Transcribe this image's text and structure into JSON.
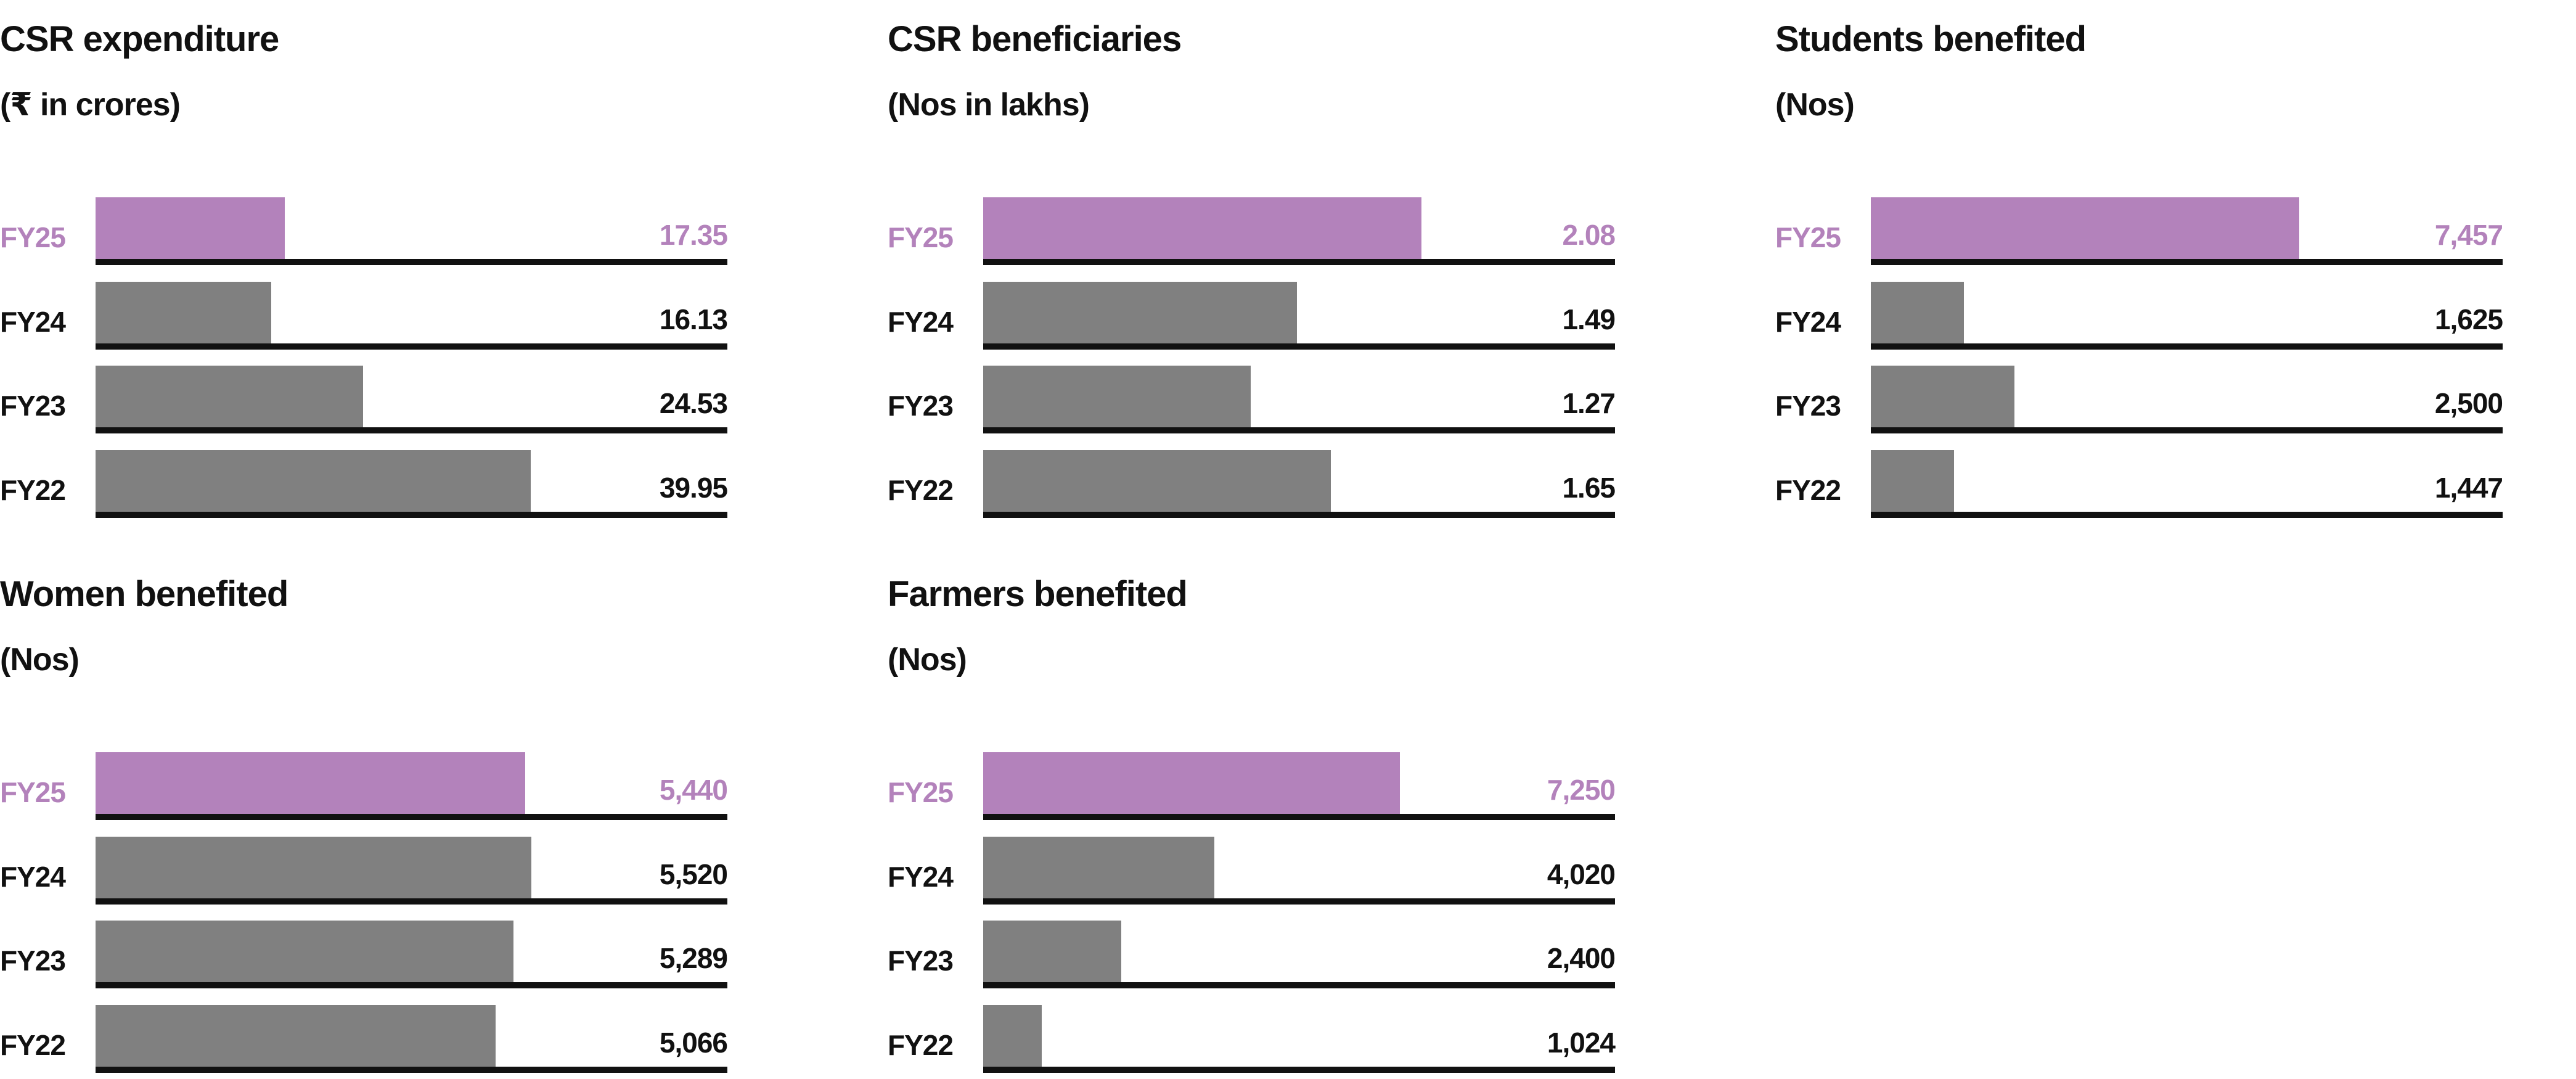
{
  "colors": {
    "current": "#b382bb",
    "previous": "#808080",
    "baseline": "#111111"
  },
  "chart_data": [
    {
      "type": "bar",
      "orientation": "horizontal",
      "title": "CSR expenditure",
      "subtitle": "(₹ in crores)",
      "categories": [
        "FY25",
        "FY24",
        "FY23",
        "FY22"
      ],
      "values": [
        17.35,
        16.13,
        24.53,
        39.95
      ],
      "labels": [
        "17.35",
        "16.13",
        "24.53",
        "39.95"
      ],
      "max": 58
    },
    {
      "type": "bar",
      "orientation": "horizontal",
      "title": "CSR beneficiaries",
      "subtitle": "(Nos in lakhs)",
      "categories": [
        "FY25",
        "FY24",
        "FY23",
        "FY22"
      ],
      "values": [
        2.08,
        1.49,
        1.27,
        1.65
      ],
      "labels": [
        "2.08",
        "1.49",
        "1.27",
        "1.65"
      ],
      "max": 3.0
    },
    {
      "type": "bar",
      "orientation": "horizontal",
      "title": "Students benefited",
      "subtitle": "(Nos)",
      "categories": [
        "FY25",
        "FY24",
        "FY23",
        "FY22"
      ],
      "values": [
        7457,
        1625,
        2500,
        1447
      ],
      "labels": [
        "7,457",
        "1,625",
        "2,500",
        "1,447"
      ],
      "max": 11000
    },
    {
      "type": "bar",
      "orientation": "horizontal",
      "title": "Women benefited",
      "subtitle": "(Nos)",
      "categories": [
        "FY25",
        "FY24",
        "FY23",
        "FY22"
      ],
      "values": [
        5440,
        5520,
        5289,
        5066
      ],
      "labels": [
        "5,440",
        "5,520",
        "5,289",
        "5,066"
      ],
      "max": 8000
    },
    {
      "type": "bar",
      "orientation": "horizontal",
      "title": "Farmers benefited",
      "subtitle": "(Nos)",
      "categories": [
        "FY25",
        "FY24",
        "FY23",
        "FY22"
      ],
      "values": [
        7250,
        4020,
        2400,
        1024
      ],
      "labels": [
        "7,250",
        "4,020",
        "2,400",
        "1,024"
      ],
      "max": 11000
    }
  ]
}
